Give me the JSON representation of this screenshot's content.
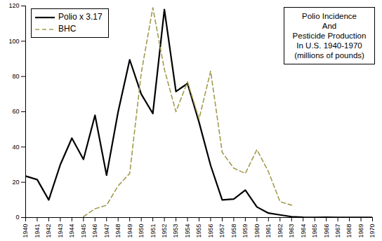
{
  "chart_data": {
    "type": "line",
    "title": "Polio Incidence\nAnd\nPesticide Production\nIn U.S. 1940-1970\n(millions of pounds)",
    "x": [
      1940,
      1941,
      1942,
      1943,
      1944,
      1945,
      1946,
      1947,
      1948,
      1949,
      1950,
      1951,
      1952,
      1953,
      1954,
      1955,
      1956,
      1957,
      1958,
      1959,
      1960,
      1961,
      1962,
      1963,
      1964,
      1965,
      1966,
      1967,
      1968,
      1969,
      1970
    ],
    "series": [
      {
        "name": "Polio x 3.17",
        "color": "#000000",
        "line_style": "solid",
        "values": [
          23.5,
          21.5,
          10,
          30,
          45,
          33,
          58,
          24,
          60,
          89.5,
          70,
          59,
          118,
          71.5,
          76,
          54,
          29.5,
          10,
          10.5,
          15.5,
          6,
          2.5,
          1.5,
          0.5,
          0.2,
          0.1,
          0.2,
          0.1,
          0.1,
          0.1,
          0.1
        ]
      },
      {
        "name": "BHC",
        "color": "#a39b4f",
        "line_style": "dashed",
        "values": [
          null,
          null,
          null,
          null,
          null,
          0.5,
          5,
          7,
          18,
          25,
          82,
          119,
          84,
          60,
          77,
          56,
          83,
          37,
          28,
          25,
          38.5,
          26,
          9,
          7,
          null,
          null,
          null,
          null,
          null,
          null,
          null
        ]
      }
    ],
    "xlim": [
      1940,
      1970
    ],
    "xticks": [
      1940,
      1941,
      1942,
      1943,
      1944,
      1945,
      1946,
      1947,
      1948,
      1949,
      1950,
      1951,
      1952,
      1953,
      1954,
      1955,
      1956,
      1957,
      1958,
      1959,
      1960,
      1961,
      1962,
      1963,
      1964,
      1965,
      1966,
      1967,
      1968,
      1969,
      1970
    ],
    "ylim": [
      0,
      120
    ],
    "yticks": [
      0,
      20,
      40,
      60,
      80,
      100,
      120
    ],
    "grid": false,
    "legend": "top-left"
  }
}
